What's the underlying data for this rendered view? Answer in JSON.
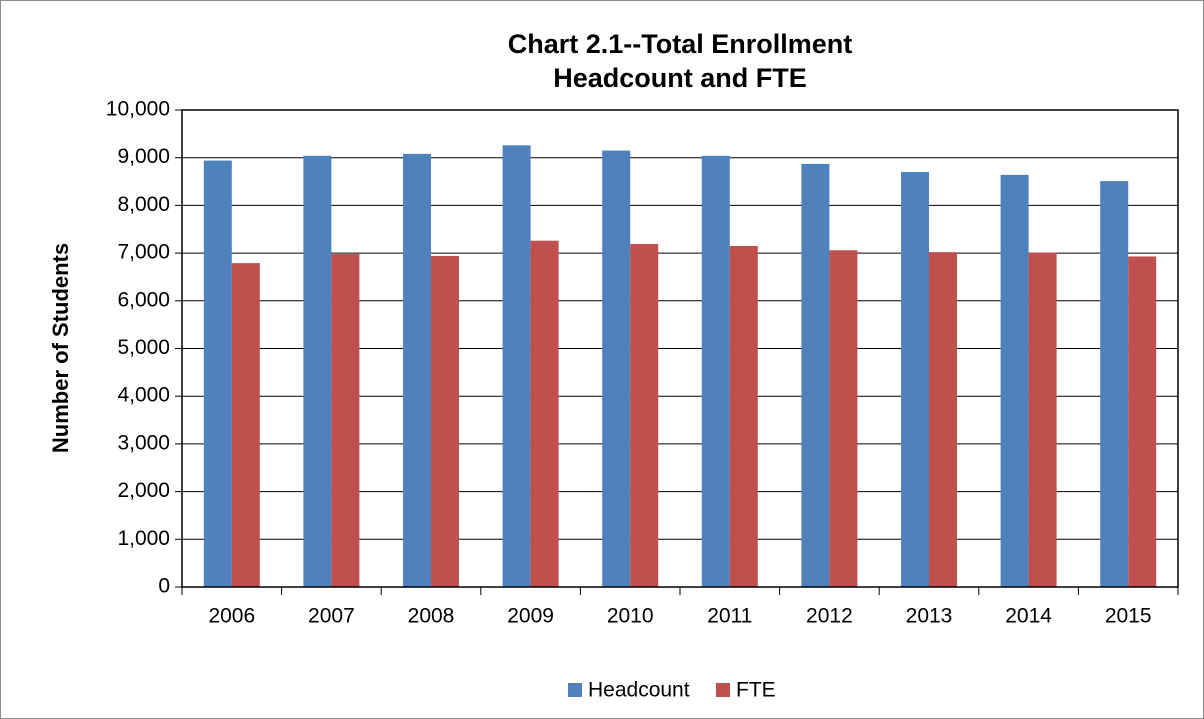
{
  "chart_data": {
    "type": "bar",
    "title": "Chart 2.1--Total Enrollment",
    "subtitle": "Headcount and FTE",
    "y_label": "Number of Students",
    "categories": [
      "2006",
      "2007",
      "2008",
      "2009",
      "2010",
      "2011",
      "2012",
      "2013",
      "2014",
      "2015"
    ],
    "series": [
      {
        "name": "Headcount",
        "color": "#4f81bd",
        "values": [
          8940,
          9040,
          9080,
          9260,
          9150,
          9040,
          8870,
          8700,
          8640,
          8510
        ]
      },
      {
        "name": "FTE",
        "color": "#c0504d",
        "values": [
          6790,
          6980,
          6940,
          7260,
          7190,
          7150,
          7060,
          7020,
          7010,
          6930
        ]
      }
    ],
    "ylim": [
      0,
      10000
    ],
    "yticks": [
      0,
      {
        "value": 1000,
        "label": "1,000"
      },
      {
        "value": 2000,
        "label": "2,000"
      },
      {
        "value": 3000,
        "label": "3,000"
      },
      {
        "value": 4000,
        "label": "4,000"
      },
      {
        "value": 5000,
        "label": "5,000"
      },
      {
        "value": 6000,
        "label": "6,000"
      },
      {
        "value": 7000,
        "label": "7,000"
      },
      {
        "value": 8000,
        "label": "8,000"
      },
      {
        "value": 9000,
        "label": "9,000"
      },
      {
        "value": 10000,
        "label": "10,000"
      }
    ],
    "grid": true,
    "legend": "bottom"
  }
}
